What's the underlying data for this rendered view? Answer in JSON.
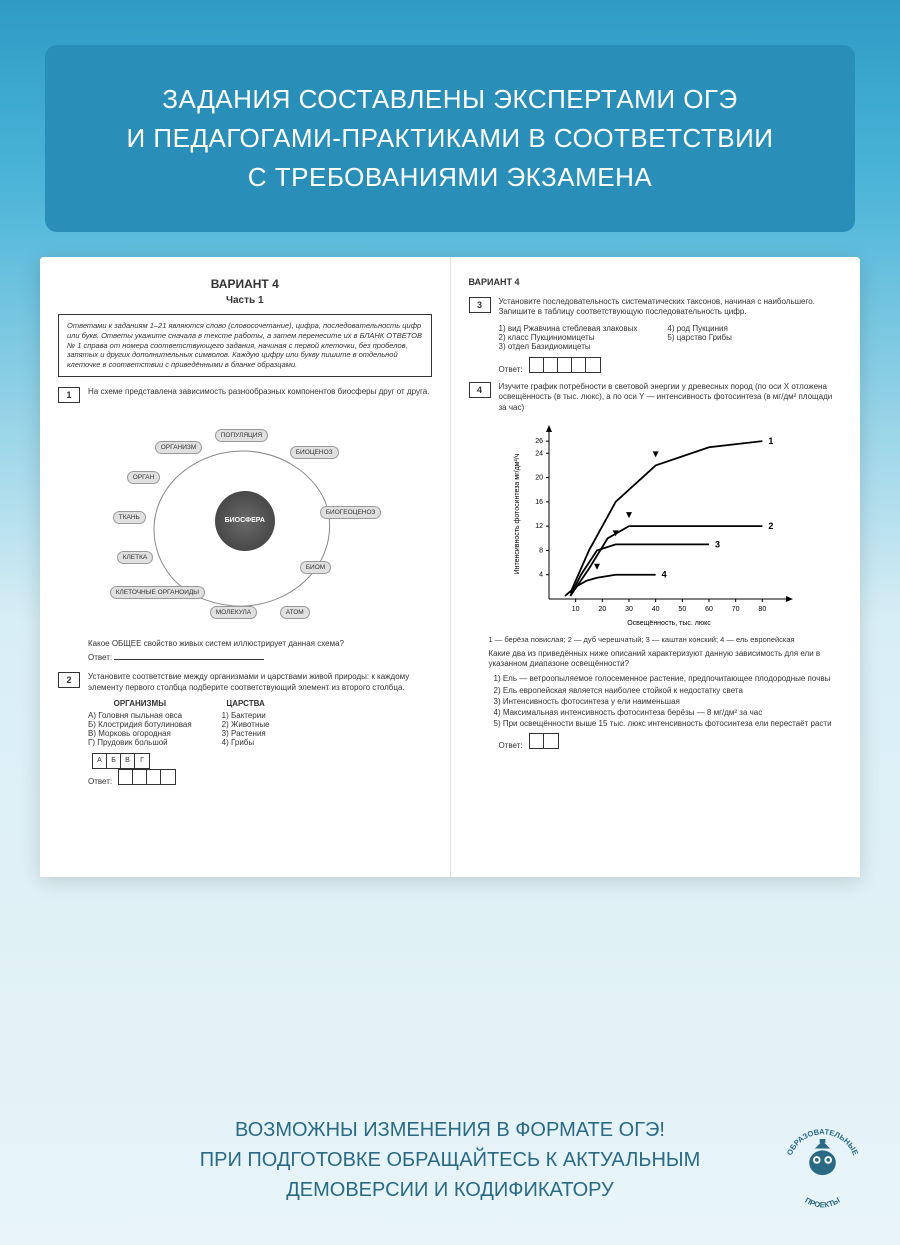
{
  "header": {
    "title_line1": "ЗАДАНИЯ СОСТАВЛЕНЫ ЭКСПЕРТАМИ ОГЭ",
    "title_line2": "И ПЕДАГОГАМИ-ПРАКТИКАМИ В СООТВЕТСТВИИ",
    "title_line3": "С ТРЕБОВАНИЯМИ ЭКЗАМЕНА",
    "bg_color": "#2a8fb8",
    "text_color": "#ffffff"
  },
  "book": {
    "left": {
      "title": "ВАРИАНТ 4",
      "subtitle": "Часть 1",
      "instruction": "Ответами к заданиям 1–21 являются слово (словосочетание), цифра, последовательность цифр или букв. Ответы укажите сначала в тексте работы, а затем перенесите их в БЛАНК ОТВЕТОВ № 1 справа от номера соответствующего задания, начиная с первой клеточки, без пробелов, запятых и других дополнительных символов. Каждую цифру или букву пишите в отдельной клеточке в соответствии с приведёнными в бланке образцами.",
      "q1": {
        "num": "1",
        "text": "На схеме представлена зависимость разнообразных компонентов биосферы друг от друга.",
        "diagram": {
          "center": "БИОСФЕРА",
          "nodes": [
            "ПОПУЛЯЦИЯ",
            "БИОЦЕНОЗ",
            "БИОГЕОЦЕНОЗ",
            "БИОМ",
            "АТОМ",
            "МОЛЕКУЛА",
            "КЛЕТОЧНЫЕ ОРГАНОИДЫ",
            "КЛЕТКА",
            "ТКАНЬ",
            "ОРГАН",
            "ОРГАНИЗМ"
          ]
        },
        "followup": "Какое ОБЩЕЕ свойство живых систем иллюстрирует данная схема?",
        "answer_label": "Ответ:"
      },
      "q2": {
        "num": "2",
        "text": "Установите соответствие между организмами и царствами живой природы: к каждому элементу первого столбца подберите соответствующий элемент из второго столбца.",
        "col1_head": "ОРГАНИЗМЫ",
        "col1": [
          "А) Головня пыльная овса",
          "Б) Клостридия ботулиновая",
          "В) Морковь огородная",
          "Г) Прудовик большой"
        ],
        "col2_head": "ЦАРСТВА",
        "col2": [
          "1) Бактерии",
          "2) Животные",
          "3) Растения",
          "4) Грибы"
        ],
        "grid_labels": [
          "А",
          "Б",
          "В",
          "Г"
        ],
        "answer_label": "Ответ:"
      }
    },
    "right": {
      "header": "ВАРИАНТ 4",
      "q3": {
        "num": "3",
        "text": "Установите последовательность систематических таксонов, начиная с наибольшего. Запишите в таблицу соответствующую последовательность цифр.",
        "opts": [
          "1) вид Ржавчина стеблевая злаковых",
          "2) класс Пукциниомицеты",
          "3) отдел Базидиомицеты",
          "4) род Пукциния",
          "5) царство Грибы"
        ],
        "answer_label": "Ответ:"
      },
      "q4": {
        "num": "4",
        "text": "Изучите график потребности в световой энергии у древесных пород (по оси X отложена освещённость (в тыс. люкс), а по оси Y — интенсивность фотосинтеза (в мг/дм² площади за час)",
        "chart": {
          "type": "line",
          "xlim": [
            0,
            90
          ],
          "ylim": [
            0,
            28
          ],
          "xticks": [
            10,
            20,
            30,
            40,
            50,
            60,
            70,
            80
          ],
          "yticks": [
            4,
            8,
            12,
            16,
            20,
            24,
            26
          ],
          "xlabel": "Освещённость, тыс. люкс",
          "ylabel": "Интенсивность фотосинтеза мг/дм²/ч",
          "series": [
            {
              "label": "1",
              "points": [
                [
                  8,
                  1
                ],
                [
                  15,
                  8
                ],
                [
                  25,
                  16
                ],
                [
                  40,
                  22
                ],
                [
                  60,
                  25
                ],
                [
                  80,
                  26
                ]
              ]
            },
            {
              "label": "2",
              "points": [
                [
                  8,
                  0.5
                ],
                [
                  15,
                  5
                ],
                [
                  22,
                  10
                ],
                [
                  30,
                  12
                ],
                [
                  50,
                  12
                ],
                [
                  80,
                  12
                ]
              ]
            },
            {
              "label": "3",
              "points": [
                [
                  8,
                  0.5
                ],
                [
                  12,
                  4
                ],
                [
                  18,
                  8
                ],
                [
                  25,
                  9
                ],
                [
                  40,
                  9
                ],
                [
                  60,
                  9
                ]
              ]
            },
            {
              "label": "4",
              "points": [
                [
                  6,
                  0.5
                ],
                [
                  10,
                  2
                ],
                [
                  14,
                  3
                ],
                [
                  18,
                  3.5
                ],
                [
                  25,
                  4
                ],
                [
                  40,
                  4
                ]
              ]
            }
          ],
          "line_color": "#000000",
          "line_width": 1.8,
          "bg_color": "#ffffff"
        },
        "legend": "1 — берёза повислая; 2 — дуб черешчатый; 3 — каштан конский; 4 — ель европейская",
        "followup": "Какие два из приведённых ниже описаний характеризуют данную зависимость для ели в указанном диапазоне освещённости?",
        "options": [
          "1) Ель — ветроопыляемое голосеменное растение, предпочитающее плодородные почвы",
          "2) Ель европейская является наиболее стойкой к недостатку света",
          "3) Интенсивность фотосинтеза у ели наименьшая",
          "4) Максимальная интенсивность фотосинтеза берёзы — 8 мг/дм² за час",
          "5) При освещённости выше 15 тыс. люкс интенсивность фотосинтеза ели перестаёт расти"
        ],
        "answer_label": "Ответ:"
      }
    }
  },
  "footer": {
    "line1": "ВОЗМОЖНЫ ИЗМЕНЕНИЯ В ФОРМАТЕ ОГЭ!",
    "line2": "ПРИ ПОДГОТОВКЕ ОБРАЩАЙТЕСЬ К АКТУАЛЬНЫМ",
    "line3": "ДЕМОВЕРСИИ И КОДИФИКАТОРУ",
    "text_color": "#2a6a85"
  },
  "logo": {
    "top": "ОБРАЗОВАТЕЛЬНЫЕ",
    "bottom": "ПРОЕКТЫ",
    "color": "#2a6a85"
  }
}
